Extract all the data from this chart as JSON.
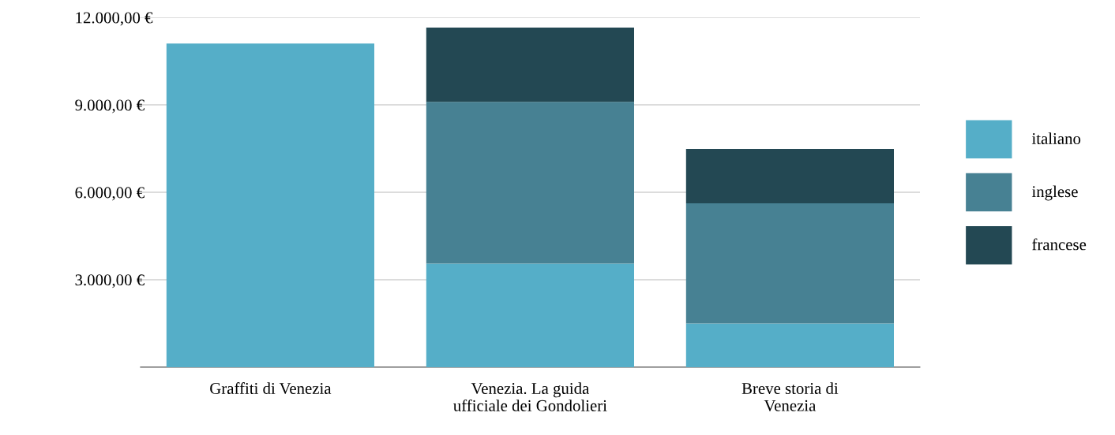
{
  "chart_data": {
    "type": "bar",
    "stacked": true,
    "categories": [
      "Graffiti di Venezia",
      "Venezia. La guida\nufficiale dei Gondolieri",
      "Breve storia di\nVenezia"
    ],
    "series": [
      {
        "name": "italiano",
        "color": "#55aec8",
        "values": [
          11100,
          3550,
          1500
        ]
      },
      {
        "name": "inglese",
        "color": "#478193",
        "values": [
          null,
          5550,
          4120
        ]
      },
      {
        "name": "francese",
        "color": "#234853",
        "values": [
          null,
          2550,
          1870
        ]
      }
    ],
    "ylim": [
      0,
      12000
    ],
    "yticks": [
      {
        "value": 3000,
        "label": "3.000,00 €"
      },
      {
        "value": 6000,
        "label": "6.000,00 €"
      },
      {
        "value": 9000,
        "label": "9.000,00 €"
      },
      {
        "value": 12000,
        "label": "12.000,00 €"
      }
    ],
    "grid": "y",
    "legend": "right"
  }
}
